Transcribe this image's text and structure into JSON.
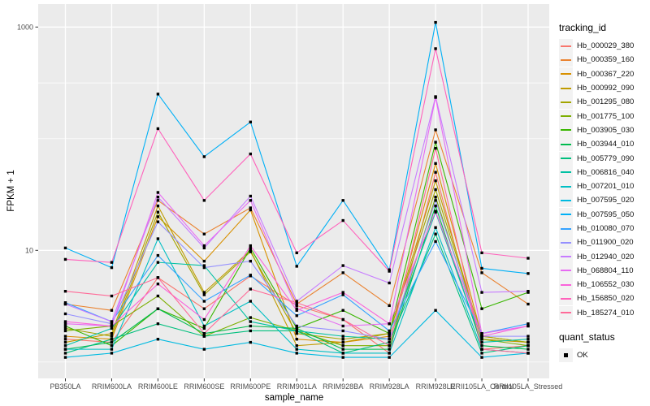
{
  "chart": {
    "background": "#FFFFFF",
    "panel_background": "#EBEBEB",
    "grid_color": "#FFFFFF",
    "tick_color": "#333333",
    "tick_label_color": "#4D4D4D",
    "axis_title_color": "#000000",
    "point_color": "#000000",
    "legend_key_background": "#F2F2F2"
  },
  "axis_titles": {
    "x": "sample_name",
    "y": "FPKM + 1"
  },
  "legend": {
    "color_legend_title": "tracking_id",
    "shape_legend_title": "quant_status",
    "shape_item_label": "OK"
  },
  "chart_data": {
    "type": "line",
    "title": "",
    "xlabel": "sample_name",
    "ylabel": "FPKM + 1",
    "yscale": "log10",
    "ylim": [
      1,
      1200
    ],
    "grid": true,
    "legend_position": "right",
    "y_ticks": [
      {
        "value": 10,
        "label": "10"
      },
      {
        "value": 1000,
        "label": "1000"
      }
    ],
    "y_minor_breaks": [
      1,
      100,
      316
    ],
    "categories": [
      "PB350LA",
      "RRIM600LA",
      "RRIM600LE",
      "RRIM600SE",
      "RRIM600PE",
      "RRIM901LA",
      "RRIM928BA",
      "RRIM928LA",
      "RRIM928LE",
      "RRII105LA_Control",
      "RRII105LA_Stressed"
    ],
    "point_shape": "square",
    "quant_status": "OK",
    "series": [
      {
        "name": "Hb_000029_380",
        "color": "#F8766D",
        "values": [
          1.6,
          1.5,
          5.7,
          3.0,
          5.9,
          3.2,
          2.4,
          1.2,
          50,
          1.3,
          1.4
        ]
      },
      {
        "name": "Hb_000359_160",
        "color": "#EA8331",
        "values": [
          3.3,
          2.9,
          28,
          14,
          24,
          3.3,
          6.3,
          3.2,
          120,
          6.3,
          3.3
        ]
      },
      {
        "name": "Hb_000367_220",
        "color": "#D89000",
        "values": [
          1.7,
          1.6,
          20,
          8.0,
          23,
          1.6,
          1.5,
          1.7,
          60,
          1.7,
          1.5
        ]
      },
      {
        "name": "Hb_000992_090",
        "color": "#C09B00",
        "values": [
          1.5,
          1.8,
          25,
          4.2,
          10,
          1.4,
          1.5,
          1.8,
          42,
          1.6,
          1.5
        ]
      },
      {
        "name": "Hb_001295_080",
        "color": "#A3A500",
        "values": [
          2.0,
          1.7,
          22,
          4.0,
          9.7,
          1.8,
          1.6,
          1.8,
          35,
          1.7,
          1.5
        ]
      },
      {
        "name": "Hb_001775_100",
        "color": "#7CAE00",
        "values": [
          1.9,
          2.1,
          3.9,
          1.7,
          2.5,
          1.9,
          1.4,
          1.4,
          30,
          1.6,
          1.4
        ]
      },
      {
        "name": "Hb_003905_030",
        "color": "#39B600",
        "values": [
          2.1,
          1.4,
          3.0,
          2.0,
          10.5,
          2.0,
          2.9,
          1.8,
          93,
          3.0,
          4.2
        ]
      },
      {
        "name": "Hb_003944_010",
        "color": "#00BB4E",
        "values": [
          1.3,
          1.5,
          3.0,
          1.8,
          2.1,
          2.0,
          1.3,
          1.3,
          25,
          1.4,
          1.3
        ]
      },
      {
        "name": "Hb_005779_090",
        "color": "#00BF7D",
        "values": [
          1.2,
          1.6,
          2.2,
          1.7,
          1.9,
          1.9,
          1.2,
          1.5,
          14,
          1.2,
          1.4
        ]
      },
      {
        "name": "Hb_006816_040",
        "color": "#00C1A3",
        "values": [
          1.4,
          2.0,
          7.8,
          7.3,
          2.3,
          1.9,
          1.7,
          1.6,
          22,
          1.5,
          1.6
        ]
      },
      {
        "name": "Hb_007201_010",
        "color": "#00BFC4",
        "values": [
          1.3,
          1.3,
          12.7,
          2.1,
          3.5,
          1.3,
          1.2,
          1.2,
          16,
          1.3,
          1.2
        ]
      },
      {
        "name": "Hb_007595_020",
        "color": "#00BAE0",
        "values": [
          1.1,
          1.2,
          1.6,
          1.3,
          1.5,
          1.2,
          1.1,
          1.1,
          2.9,
          1.1,
          1.2
        ]
      },
      {
        "name": "Hb_007595_050",
        "color": "#00B0F6",
        "values": [
          10.5,
          7.0,
          251,
          69,
          141,
          7.2,
          28,
          6.7,
          1100,
          6.9,
          6.2
        ]
      },
      {
        "name": "Hb_010080_070",
        "color": "#35A2FF",
        "values": [
          3.4,
          2.3,
          9.0,
          3.5,
          6.0,
          2.6,
          4.0,
          1.9,
          12,
          1.8,
          2.2
        ]
      },
      {
        "name": "Hb_011900_020",
        "color": "#9590FF",
        "values": [
          2.7,
          2.2,
          18,
          7.0,
          8.0,
          2.1,
          1.9,
          1.6,
          28,
          1.7,
          1.7
        ]
      },
      {
        "name": "Hb_012940_020",
        "color": "#C77CFF",
        "values": [
          3.3,
          2.3,
          30,
          10.5,
          30.6,
          3.5,
          7.3,
          5.1,
          238,
          4.2,
          4.3
        ]
      },
      {
        "name": "Hb_068804_110",
        "color": "#E76BF3",
        "values": [
          2.2,
          2.1,
          33,
          11,
          28,
          3.0,
          2.1,
          2.2,
          234,
          1.8,
          2.1
        ]
      },
      {
        "name": "Hb_106552_030",
        "color": "#FA62DB",
        "values": [
          2.3,
          2.1,
          5.0,
          2.4,
          11,
          2.9,
          4.2,
          2.2,
          22.4,
          1.7,
          2.1
        ]
      },
      {
        "name": "Hb_156850_020",
        "color": "#FF62BC",
        "values": [
          8.3,
          7.8,
          123,
          28,
          73,
          9.5,
          18.5,
          6.5,
          640,
          9.5,
          8.5
        ]
      },
      {
        "name": "Hb_185274_010",
        "color": "#FF6A98",
        "values": [
          4.3,
          3.9,
          5.7,
          1.8,
          4.5,
          3.4,
          2.4,
          1.4,
          82,
          1.3,
          1.2
        ]
      }
    ]
  }
}
